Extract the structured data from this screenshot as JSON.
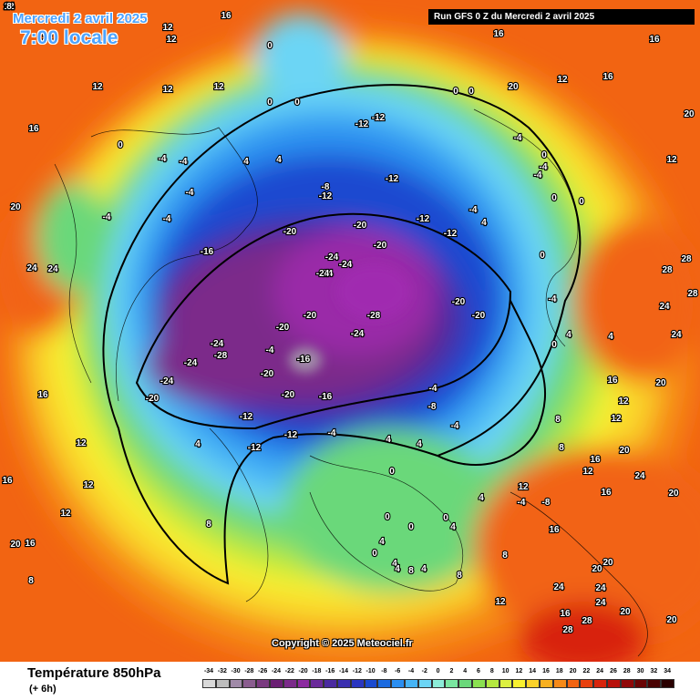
{
  "header": {
    "date": "Mercredi 2 avril 2025",
    "time": "7:00 locale",
    "run": "Run GFS 0 Z du Mercredi 2 avril 2025"
  },
  "copyright": "Copyright © 2025 Meteociel.fr",
  "legend": {
    "title": "Température 850hPa",
    "subtitle": "(+ 6h)",
    "ticks": [
      "-34",
      "-32",
      "-30",
      "-28",
      "-26",
      "-24",
      "-22",
      "-20",
      "-18",
      "-16",
      "-14",
      "-12",
      "-10",
      "-8",
      "-6",
      "-4",
      "-2",
      "0",
      "2",
      "4",
      "6",
      "8",
      "10",
      "12",
      "14",
      "16",
      "18",
      "20",
      "22",
      "24",
      "26",
      "28",
      "30",
      "32",
      "34"
    ],
    "colors": [
      "#d9d9d9",
      "#bdbdbd",
      "#a08aa8",
      "#8a5d8f",
      "#7a3a80",
      "#6b1f73",
      "#7b2a8a",
      "#8c2aa0",
      "#6a2a9a",
      "#4a2aa0",
      "#3a2fb0",
      "#2a36c0",
      "#1a4ad0",
      "#1a6ae0",
      "#2a8ef0",
      "#46b4f5",
      "#6cd5f5",
      "#8cecd8",
      "#7ae6a0",
      "#6ad87a",
      "#8ae050",
      "#b4e840",
      "#dcf040",
      "#f8f030",
      "#fad22a",
      "#f8b020",
      "#f68a18",
      "#f26412",
      "#e8400e",
      "#d8240c",
      "#b8100a",
      "#900808",
      "#6a0404",
      "#4a0202",
      "#2a0000"
    ]
  },
  "map_labels": [
    {
      "t": "16"
    },
    {
      "t": "12"
    },
    {
      "t": "12"
    },
    {
      "t": "12"
    },
    {
      "t": "16"
    },
    {
      "t": "16"
    },
    {
      "t": "12"
    },
    {
      "t": "12"
    },
    {
      "t": "16"
    },
    {
      "t": "12"
    },
    {
      "t": "0"
    },
    {
      "t": "0"
    },
    {
      "t": "0"
    },
    {
      "t": "0"
    },
    {
      "t": "0"
    },
    {
      "t": "4"
    },
    {
      "t": "0"
    },
    {
      "t": "0"
    },
    {
      "t": "20"
    },
    {
      "t": "12"
    },
    {
      "t": "16"
    },
    {
      "t": "20"
    },
    {
      "t": "-12"
    },
    {
      "t": "-12"
    },
    {
      "t": "-4"
    },
    {
      "t": "-4"
    },
    {
      "t": "-4"
    },
    {
      "t": "0"
    },
    {
      "t": "4"
    },
    {
      "t": "12"
    },
    {
      "t": "-4"
    },
    {
      "t": "-4"
    },
    {
      "t": "-4"
    },
    {
      "t": "-12"
    },
    {
      "t": "-8"
    },
    {
      "t": "-12"
    },
    {
      "t": "-4"
    },
    {
      "t": "4"
    },
    {
      "t": "0"
    },
    {
      "t": "-12"
    },
    {
      "t": "-12"
    },
    {
      "t": "-4"
    },
    {
      "t": "-4"
    },
    {
      "t": "-20"
    },
    {
      "t": "-20"
    },
    {
      "t": "-16"
    },
    {
      "t": "-24"
    },
    {
      "t": "-24"
    },
    {
      "t": "-24"
    },
    {
      "t": "-20"
    },
    {
      "t": "-20"
    },
    {
      "t": "-20"
    },
    {
      "t": "-24"
    },
    {
      "t": "-28"
    },
    {
      "t": "-24"
    },
    {
      "t": "-20"
    },
    {
      "t": "-20"
    },
    {
      "t": "-24"
    },
    {
      "t": "-28"
    },
    {
      "t": "-16"
    },
    {
      "t": "-20"
    },
    {
      "t": "-20"
    },
    {
      "t": "-24"
    },
    {
      "t": "-24"
    },
    {
      "t": "-20"
    },
    {
      "t": "-12"
    },
    {
      "t": "-12"
    },
    {
      "t": "-4"
    },
    {
      "t": "-8"
    },
    {
      "t": "4"
    },
    {
      "t": "8"
    },
    {
      "t": "12"
    },
    {
      "t": "16"
    },
    {
      "t": "20"
    },
    {
      "t": "24"
    },
    {
      "t": "24"
    },
    {
      "t": "28"
    },
    {
      "t": "28"
    },
    {
      "t": "24"
    },
    {
      "t": "20"
    },
    {
      "t": "24"
    },
    {
      "t": "28"
    },
    {
      "t": "16"
    },
    {
      "t": "12"
    },
    {
      "t": "8"
    },
    {
      "t": "4"
    },
    {
      "t": "4"
    },
    {
      "t": "0"
    },
    {
      "t": "-4"
    },
    {
      "t": "0"
    },
    {
      "t": "0"
    },
    {
      "t": "0"
    },
    {
      "t": "0"
    },
    {
      "t": "4"
    },
    {
      "t": "4"
    },
    {
      "t": "8"
    },
    {
      "t": "12"
    },
    {
      "t": "16"
    },
    {
      "t": "20"
    },
    {
      "t": "24"
    },
    {
      "t": "24"
    },
    {
      "t": "24"
    },
    {
      "t": "28"
    },
    {
      "t": "28"
    },
    {
      "t": "20"
    },
    {
      "t": "20"
    },
    {
      "t": "16"
    },
    {
      "t": "12"
    },
    {
      "t": "8"
    },
    {
      "t": "4"
    },
    {
      "t": "16"
    },
    {
      "t": "12"
    },
    {
      "t": "8"
    },
    {
      "t": "12"
    },
    {
      "t": "16"
    },
    {
      "t": "20"
    },
    {
      "t": "24"
    },
    {
      "t": "20"
    },
    {
      "t": "16"
    },
    {
      "t": "12"
    },
    {
      "t": "8"
    },
    {
      "t": "4"
    },
    {
      "t": "0"
    },
    {
      "t": "-4"
    },
    {
      "t": "-8"
    },
    {
      "t": "4"
    },
    {
      "t": "4"
    },
    {
      "t": "8"
    },
    {
      "t": "12"
    },
    {
      "t": "16"
    },
    {
      "t": "20"
    },
    {
      "t": "20"
    },
    {
      "t": "-16"
    },
    {
      "t": "-12"
    },
    {
      "t": "-4"
    },
    {
      "t": "0"
    },
    {
      "t": "4"
    },
    {
      "t": "-4"
    },
    {
      "t": "-4"
    },
    {
      "t": "4"
    },
    {
      "t": "8"
    },
    {
      "t": "12"
    },
    {
      "t": "24"
    },
    {
      "t": "24"
    },
    {
      "t": "28"
    },
    {
      "t": "24"
    },
    {
      "t": "20"
    },
    {
      "t": "16"
    },
    {
      "t": "12"
    },
    {
      "t": "8"
    }
  ]
}
